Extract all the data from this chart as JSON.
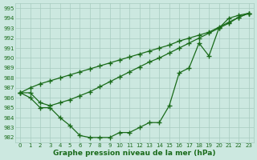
{
  "x": [
    0,
    1,
    2,
    3,
    4,
    5,
    6,
    7,
    8,
    9,
    10,
    11,
    12,
    13,
    14,
    15,
    16,
    17,
    18,
    19,
    20,
    21,
    22,
    23
  ],
  "line1": [
    986.5,
    986.0,
    985.0,
    985.0,
    984.0,
    983.2,
    982.2,
    982.0,
    982.0,
    982.0,
    982.5,
    982.5,
    983.0,
    983.5,
    983.5,
    985.2,
    988.5,
    989.0,
    991.5,
    990.2,
    993.0,
    994.0,
    994.3,
    994.5
  ],
  "line2": [
    986.5,
    987.0,
    987.4,
    987.7,
    988.0,
    988.3,
    988.6,
    988.9,
    989.2,
    989.5,
    989.8,
    990.1,
    990.4,
    990.7,
    991.0,
    991.3,
    991.7,
    992.0,
    992.3,
    992.6,
    993.1,
    993.6,
    994.1,
    994.5
  ],
  "line3": [
    986.5,
    986.5,
    985.5,
    985.2,
    985.5,
    985.8,
    986.2,
    986.6,
    987.1,
    987.6,
    988.1,
    988.6,
    989.1,
    989.6,
    990.0,
    990.5,
    991.0,
    991.5,
    992.0,
    992.5,
    993.0,
    993.5,
    994.1,
    994.5
  ],
  "line_color": "#1a6b1a",
  "bg_color": "#cce8e0",
  "grid_color": "#a8ccbf",
  "ylim": [
    981.5,
    995.5
  ],
  "yticks": [
    982,
    983,
    984,
    985,
    986,
    987,
    988,
    989,
    990,
    991,
    992,
    993,
    994,
    995
  ],
  "xticks": [
    0,
    1,
    2,
    3,
    4,
    5,
    6,
    7,
    8,
    9,
    10,
    11,
    12,
    13,
    14,
    15,
    16,
    17,
    18,
    19,
    20,
    21,
    22,
    23
  ],
  "xlabel": "Graphe pression niveau de la mer (hPa)",
  "marker": "+",
  "markersize": 4,
  "linewidth": 0.9
}
